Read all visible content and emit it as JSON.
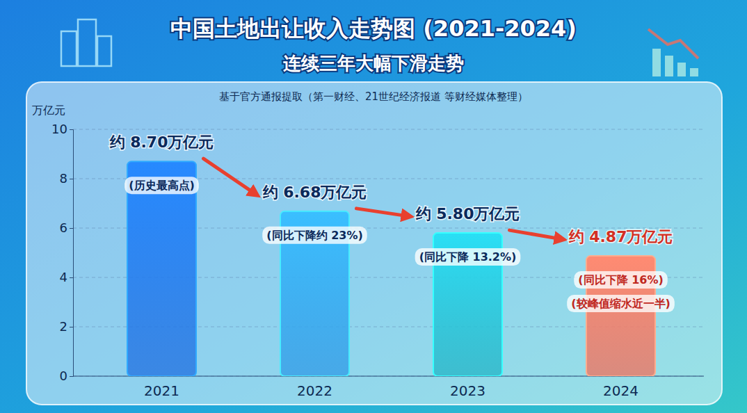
{
  "chart_data": {
    "type": "bar",
    "title": "中国土地出让收入走势图 (2021-2024)",
    "subtitle": "连续三年大幅下滑走势",
    "source": "基于官方通报提取（第一财经、21世纪经济报道 等财经媒体整理）",
    "y_label": "万亿元",
    "categories": [
      "2021",
      "2022",
      "2023",
      "2024"
    ],
    "values": [
      8.7,
      6.68,
      5.8,
      4.87
    ],
    "value_labels": [
      "约 8.70万亿元",
      "约 6.68万亿元",
      "约 5.80万亿元",
      "约 4.87万亿元"
    ],
    "annotations": [
      [
        "(历史最高点)"
      ],
      [
        "(同比下降约 23%)"
      ],
      [
        "(同比下降 13.2%)"
      ],
      [
        "(同比下降 16%)",
        "(较峰值缩水近一半)"
      ]
    ],
    "colors": [
      "#1f6fe0",
      "#2f9ae6",
      "#22b4c6",
      "#f0705c"
    ],
    "ylim": [
      0,
      10
    ],
    "yticks": [
      0,
      2,
      4,
      6,
      8,
      10
    ],
    "grid": true,
    "data_labels": true
  }
}
